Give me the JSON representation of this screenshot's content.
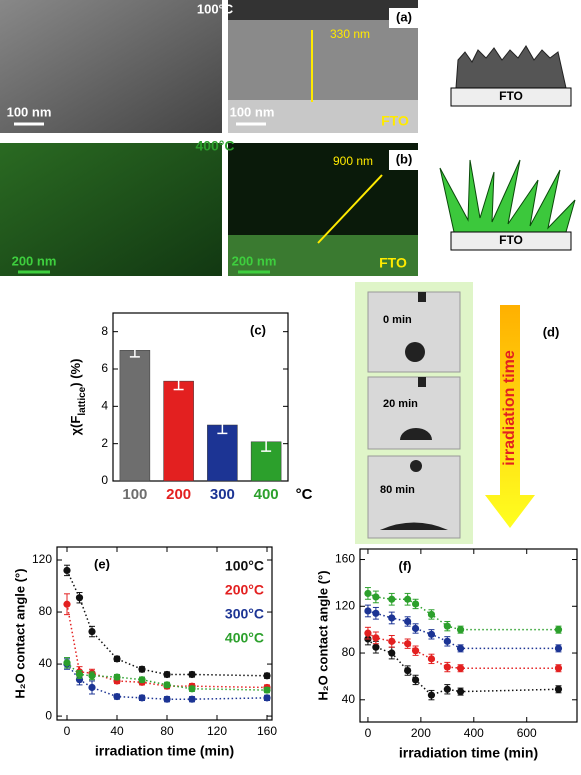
{
  "image_panels": {
    "a": {
      "temperature": "100°C",
      "tag": "(a)",
      "thickness": "330 nm",
      "scale_left": "100 nm",
      "scale_right": "100 nm",
      "substrate": "FTO",
      "schematic_substrate": "FTO"
    },
    "b": {
      "temperature": "400°C",
      "tag": "(b)",
      "thickness": "900 nm",
      "scale_left": "200 nm",
      "scale_right": "200 nm",
      "substrate": "FTO",
      "schematic_substrate": "FTO"
    },
    "d": {
      "tag": "(d)",
      "times": [
        "0 min",
        "20 min",
        "80 min"
      ],
      "arrow_label": "irradiation time"
    }
  },
  "chart_data": [
    {
      "type": "bar",
      "tag": "(c)",
      "y_label": [
        "χ(F",
        "lattice",
        ") (%)"
      ],
      "x_label": "°C",
      "categories": [
        "100",
        "200",
        "300",
        "400"
      ],
      "colors": [
        "#6e6e6e",
        "#e32020",
        "#1c3494",
        "#2ca02c"
      ],
      "values": [
        7.0,
        5.35,
        3.0,
        2.1
      ],
      "errors": [
        0.35,
        0.45,
        0.45,
        0.5
      ],
      "ylim": [
        0,
        9
      ],
      "yticks": [
        0,
        2,
        4,
        6,
        8
      ]
    },
    {
      "type": "line",
      "tag": "(e)",
      "y_label": "H₂O contact angle (°)",
      "x_label": "irradiation time (min)",
      "legend": "upper right",
      "xlim": [
        -8,
        164
      ],
      "xticks": [
        0,
        40,
        80,
        120,
        160
      ],
      "ylim": [
        -3,
        130
      ],
      "yticks": [
        0,
        40,
        80,
        120
      ],
      "series": [
        {
          "name": "100°C",
          "color": "#111111",
          "x": [
            0,
            10,
            20,
            40,
            60,
            80,
            100,
            160
          ],
          "values": [
            112,
            91,
            65,
            44,
            36,
            32,
            32,
            31
          ],
          "errors": [
            4,
            4,
            4,
            2,
            2,
            2,
            2,
            2
          ]
        },
        {
          "name": "200°C",
          "color": "#e32020",
          "x": [
            0,
            10,
            20,
            40,
            60,
            80,
            100,
            160
          ],
          "values": [
            86,
            34,
            33,
            27,
            26,
            23,
            23,
            22
          ],
          "errors": [
            8,
            4,
            3,
            2,
            2,
            2,
            2,
            2
          ]
        },
        {
          "name": "300°C",
          "color": "#1c3494",
          "x": [
            0,
            10,
            20,
            40,
            60,
            80,
            100,
            160
          ],
          "values": [
            40,
            28,
            22,
            15,
            14,
            13,
            13,
            14
          ],
          "errors": [
            4,
            4,
            5,
            2,
            2,
            2,
            2,
            2
          ]
        },
        {
          "name": "400°C",
          "color": "#2ca02c",
          "x": [
            0,
            10,
            20,
            40,
            60,
            80,
            100,
            160
          ],
          "values": [
            41,
            32,
            31,
            30,
            28,
            24,
            21,
            20
          ],
          "errors": [
            4,
            3,
            3,
            2,
            2,
            2,
            2,
            2
          ]
        }
      ]
    },
    {
      "type": "line",
      "tag": "(f)",
      "y_label": "H₂O contact angle (°)",
      "x_label": "irradiation time (min)",
      "xlim": [
        -30,
        790
      ],
      "xticks": [
        0,
        200,
        400,
        600
      ],
      "ylim": [
        21,
        169
      ],
      "yticks": [
        40,
        80,
        120,
        160
      ],
      "series": [
        {
          "color": "#111111",
          "x": [
            0,
            30,
            90,
            150,
            180,
            240,
            300,
            350,
            720
          ],
          "values": [
            92,
            85,
            80,
            65,
            57,
            44,
            49,
            47,
            49
          ],
          "errors": [
            5,
            5,
            5,
            4,
            4,
            4,
            4,
            3,
            3
          ]
        },
        {
          "color": "#e32020",
          "x": [
            0,
            30,
            90,
            150,
            180,
            240,
            300,
            350,
            720
          ],
          "values": [
            97,
            93,
            90,
            88,
            82,
            75,
            68,
            67,
            67
          ],
          "errors": [
            5,
            5,
            5,
            4,
            4,
            4,
            4,
            3,
            3
          ]
        },
        {
          "color": "#1c3494",
          "x": [
            0,
            30,
            90,
            150,
            180,
            240,
            300,
            350,
            720
          ],
          "values": [
            116,
            114,
            110,
            107,
            101,
            96,
            90,
            84,
            84
          ],
          "errors": [
            5,
            5,
            5,
            4,
            4,
            4,
            4,
            3,
            3
          ]
        },
        {
          "color": "#2ca02c",
          "x": [
            0,
            30,
            90,
            150,
            180,
            240,
            300,
            350,
            720
          ],
          "values": [
            131,
            128,
            126,
            126,
            122,
            113,
            103,
            100,
            100
          ],
          "errors": [
            5,
            5,
            5,
            5,
            4,
            4,
            4,
            3,
            3
          ]
        }
      ]
    }
  ]
}
